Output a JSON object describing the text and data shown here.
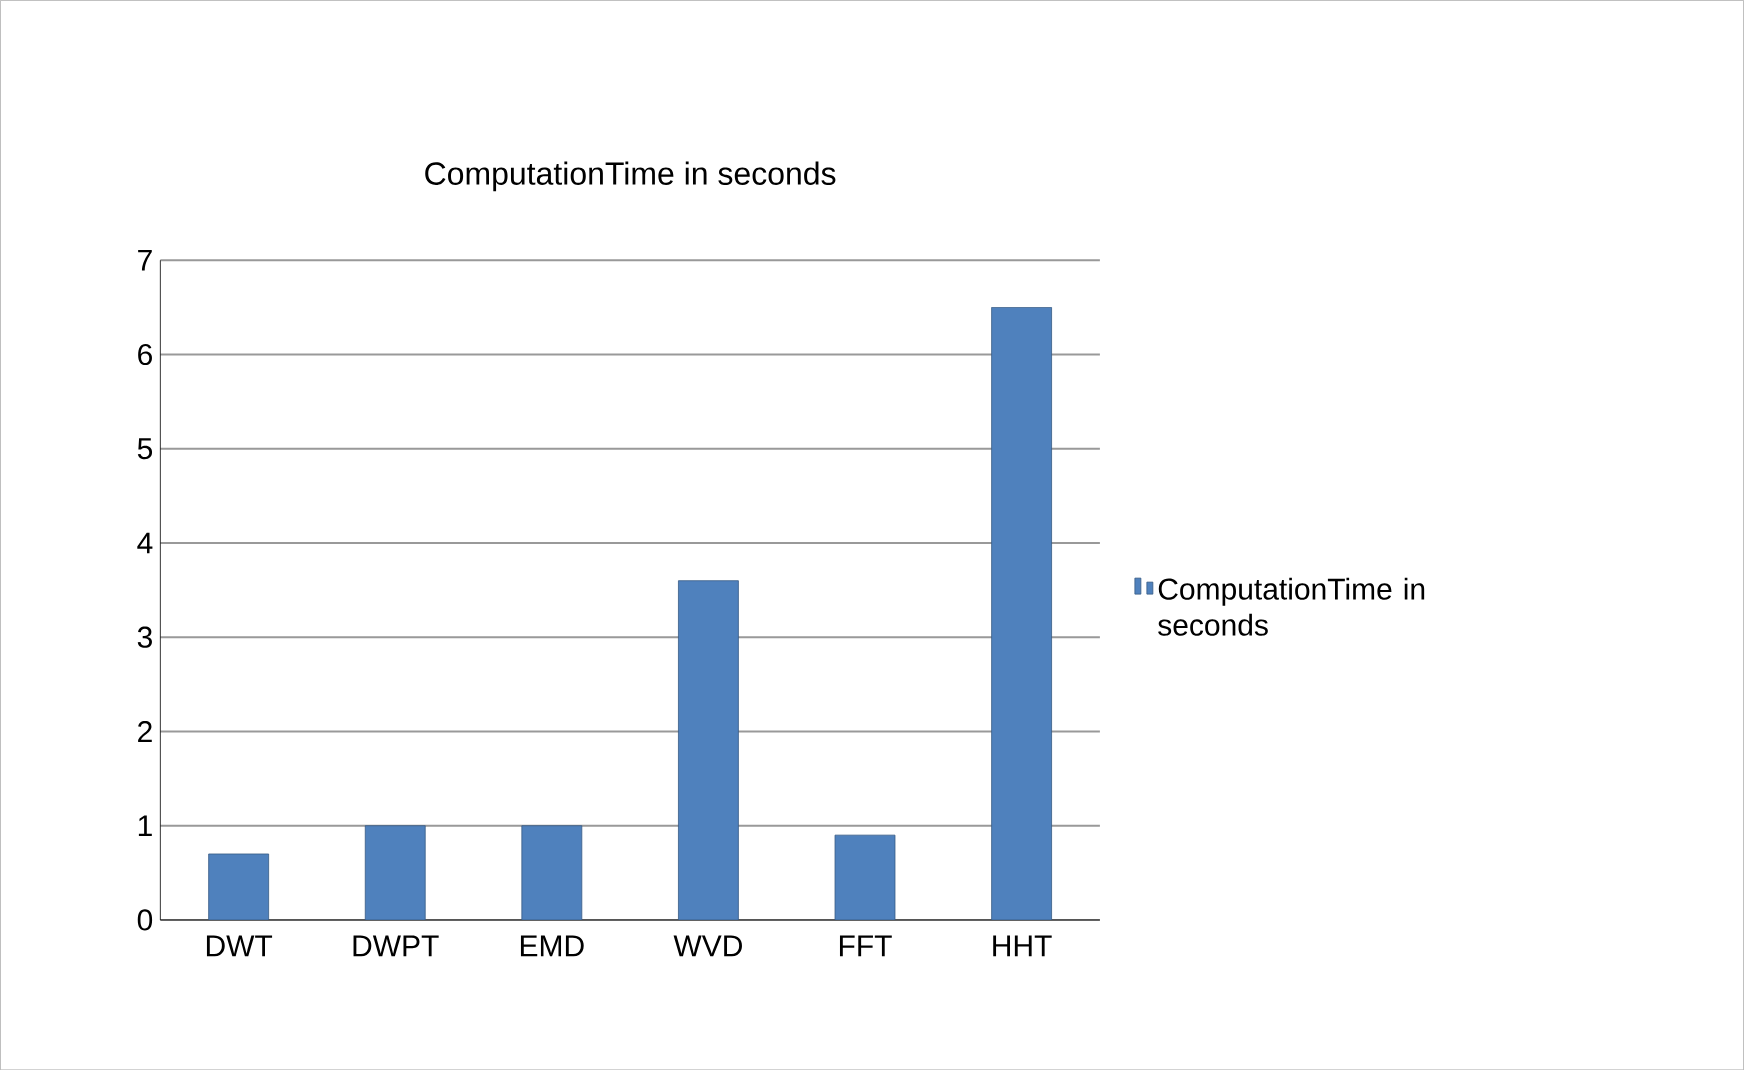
{
  "chart_data": {
    "type": "bar",
    "title": "ComputationTime in seconds",
    "categories": [
      "DWT",
      "DWPT",
      "EMD",
      "WVD",
      "FFT",
      "HHT"
    ],
    "series": [
      {
        "name": "ComputationTime in seconds",
        "color": "#4f81bd",
        "values": [
          0.7,
          1.0,
          1.0,
          3.6,
          0.9,
          6.5
        ]
      }
    ],
    "ylim": [
      0,
      7
    ],
    "yticks": [
      0,
      1,
      2,
      3,
      4,
      5,
      6,
      7
    ],
    "grid": "y",
    "legend": "right"
  }
}
